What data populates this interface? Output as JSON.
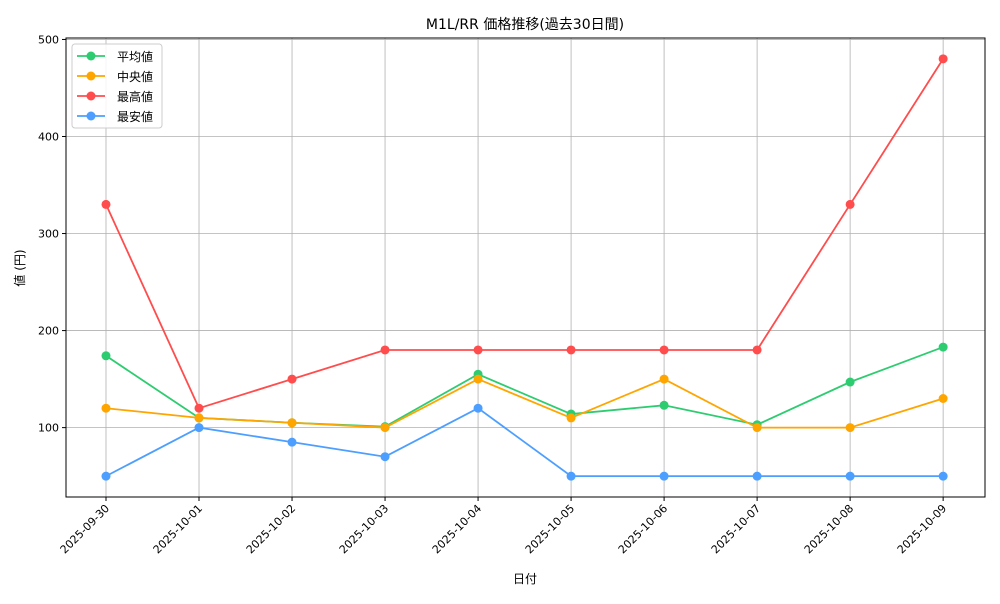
{
  "chart_data": {
    "type": "line",
    "title": "M1L/RR 価格推移(過去30日間)",
    "xlabel": "日付",
    "ylabel": "値 (円)",
    "categories": [
      "2025-09-30",
      "2025-10-01",
      "2025-10-02",
      "2025-10-03",
      "2025-10-04",
      "2025-10-05",
      "2025-10-06",
      "2025-10-07",
      "2025-10-08",
      "2025-10-09"
    ],
    "ylim": [
      28.5,
      501.5
    ],
    "yticks": [
      100,
      200,
      300,
      400,
      500
    ],
    "grid": true,
    "legend_position": "top-left",
    "series": [
      {
        "name": "平均値",
        "color": "#2ecc71",
        "values": [
          174,
          110,
          105,
          101,
          155,
          114,
          123,
          103,
          147,
          183
        ]
      },
      {
        "name": "中央値",
        "color": "#ffa500",
        "values": [
          120,
          110,
          105,
          100,
          150,
          110,
          150,
          100,
          100,
          130
        ]
      },
      {
        "name": "最高値",
        "color": "#ff4d4d",
        "values": [
          330,
          120,
          150,
          180,
          180,
          180,
          180,
          180,
          330,
          480
        ]
      },
      {
        "name": "最安値",
        "color": "#4d9fff",
        "values": [
          50,
          100,
          85,
          70,
          120,
          50,
          50,
          50,
          50,
          50
        ]
      }
    ]
  }
}
